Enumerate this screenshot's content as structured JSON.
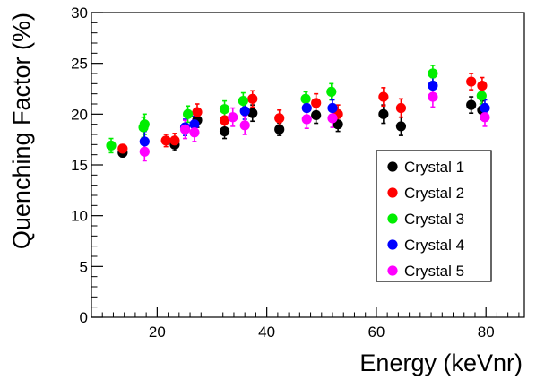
{
  "chart_data": {
    "type": "scatter",
    "title": "",
    "xlabel": "Energy (keVnr)",
    "ylabel": "Quenching Factor (%)",
    "xlim": [
      8,
      87
    ],
    "ylim": [
      0,
      30
    ],
    "xticks": [
      20,
      40,
      60,
      80
    ],
    "yticks": [
      0,
      5,
      10,
      15,
      20,
      25,
      30
    ],
    "grid": false,
    "legend_position": "right",
    "series": [
      {
        "name": "Crystal 1",
        "color": "#000000",
        "points": [
          {
            "x": 13.7,
            "y": 16.2,
            "err": 0.4
          },
          {
            "x": 23.2,
            "y": 17.0,
            "err": 0.6
          },
          {
            "x": 27.3,
            "y": 19.4,
            "err": 0.7
          },
          {
            "x": 32.3,
            "y": 18.3,
            "err": 0.7
          },
          {
            "x": 37.4,
            "y": 20.1,
            "err": 0.8
          },
          {
            "x": 42.3,
            "y": 18.5,
            "err": 0.6
          },
          {
            "x": 49.0,
            "y": 19.9,
            "err": 0.8
          },
          {
            "x": 53.0,
            "y": 19.0,
            "err": 0.7
          },
          {
            "x": 61.3,
            "y": 20.0,
            "err": 0.9
          },
          {
            "x": 64.5,
            "y": 18.8,
            "err": 0.9
          },
          {
            "x": 77.3,
            "y": 20.9,
            "err": 0.8
          },
          {
            "x": 79.3,
            "y": 20.4,
            "err": 0.9
          }
        ]
      },
      {
        "name": "Crystal 2",
        "color": "#ff0000",
        "points": [
          {
            "x": 13.7,
            "y": 16.6,
            "err": 0.4
          },
          {
            "x": 21.6,
            "y": 17.4,
            "err": 0.6
          },
          {
            "x": 23.2,
            "y": 17.4,
            "err": 0.7
          },
          {
            "x": 27.3,
            "y": 20.2,
            "err": 0.8
          },
          {
            "x": 32.3,
            "y": 19.4,
            "err": 0.8
          },
          {
            "x": 37.4,
            "y": 21.5,
            "err": 0.8
          },
          {
            "x": 42.3,
            "y": 19.6,
            "err": 0.8
          },
          {
            "x": 49.0,
            "y": 21.1,
            "err": 0.9
          },
          {
            "x": 53.0,
            "y": 20.0,
            "err": 0.9
          },
          {
            "x": 61.3,
            "y": 21.7,
            "err": 0.9
          },
          {
            "x": 64.5,
            "y": 20.6,
            "err": 0.9
          },
          {
            "x": 77.3,
            "y": 23.2,
            "err": 0.8
          },
          {
            "x": 79.3,
            "y": 22.8,
            "err": 0.8
          }
        ]
      },
      {
        "name": "Crystal 3",
        "color": "#00ee00",
        "points": [
          {
            "x": 11.6,
            "y": 16.9,
            "err": 0.7
          },
          {
            "x": 17.5,
            "y": 18.7,
            "err": 1.0
          },
          {
            "x": 17.7,
            "y": 19.0,
            "err": 1.0
          },
          {
            "x": 25.6,
            "y": 20.0,
            "err": 0.8
          },
          {
            "x": 32.3,
            "y": 20.5,
            "err": 0.8
          },
          {
            "x": 35.7,
            "y": 21.3,
            "err": 0.8
          },
          {
            "x": 47.1,
            "y": 21.5,
            "err": 0.7
          },
          {
            "x": 51.8,
            "y": 22.2,
            "err": 0.8
          },
          {
            "x": 70.3,
            "y": 24.0,
            "err": 0.8
          },
          {
            "x": 79.2,
            "y": 21.8,
            "err": 0.8
          }
        ]
      },
      {
        "name": "Crystal 4",
        "color": "#0000ff",
        "points": [
          {
            "x": 17.7,
            "y": 17.3,
            "err": 1.0
          },
          {
            "x": 25.1,
            "y": 18.7,
            "err": 0.8
          },
          {
            "x": 26.8,
            "y": 19.0,
            "err": 0.8
          },
          {
            "x": 36.0,
            "y": 20.3,
            "err": 0.8
          },
          {
            "x": 47.3,
            "y": 20.6,
            "err": 0.8
          },
          {
            "x": 52.0,
            "y": 20.6,
            "err": 0.8
          },
          {
            "x": 70.3,
            "y": 22.8,
            "err": 0.8
          },
          {
            "x": 79.8,
            "y": 20.6,
            "err": 0.8
          }
        ]
      },
      {
        "name": "Crystal 5",
        "color": "#ff00ff",
        "points": [
          {
            "x": 17.7,
            "y": 16.3,
            "err": 0.9
          },
          {
            "x": 25.1,
            "y": 18.5,
            "err": 0.9
          },
          {
            "x": 26.8,
            "y": 18.2,
            "err": 0.9
          },
          {
            "x": 33.8,
            "y": 19.7,
            "err": 0.9
          },
          {
            "x": 36.0,
            "y": 18.9,
            "err": 0.9
          },
          {
            "x": 47.3,
            "y": 19.5,
            "err": 0.9
          },
          {
            "x": 52.0,
            "y": 19.6,
            "err": 0.9
          },
          {
            "x": 70.3,
            "y": 21.7,
            "err": 1.0
          },
          {
            "x": 79.8,
            "y": 19.7,
            "err": 0.9
          }
        ]
      }
    ]
  }
}
